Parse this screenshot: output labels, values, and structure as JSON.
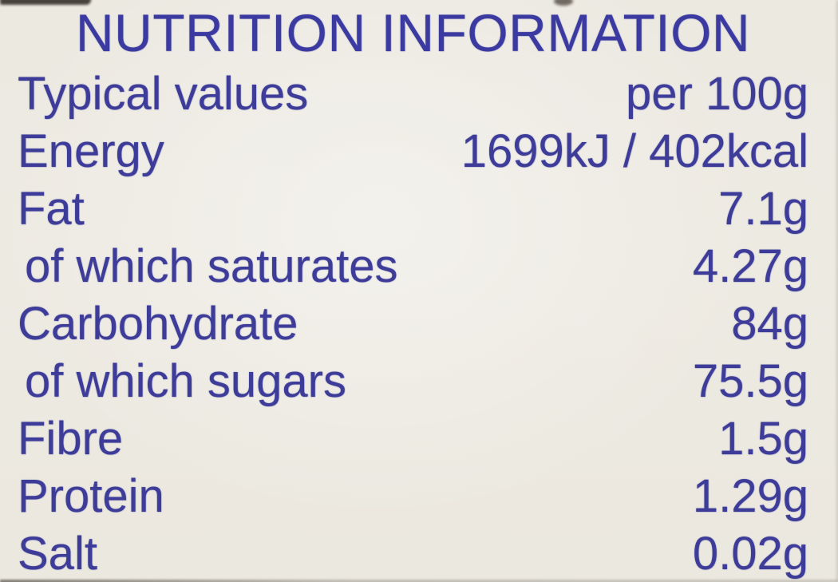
{
  "page": {
    "background_color": "#edeae2",
    "text_color": "#3e3c99",
    "title_color": "#3b3aa0"
  },
  "label": {
    "title": "NUTRITION INFORMATION",
    "header": {
      "label": "Typical values",
      "value": "per 100g"
    },
    "rows": [
      {
        "name": "Energy",
        "value": "1699kJ / 402kcal"
      },
      {
        "name": "Fat",
        "value": "7.1g"
      },
      {
        "name": "of which saturates",
        "value": "4.27g"
      },
      {
        "name": "Carbohydrate",
        "value": "84g"
      },
      {
        "name": "of which sugars",
        "value": "75.5g"
      },
      {
        "name": "Fibre",
        "value": "1.5g"
      },
      {
        "name": "Protein",
        "value": "1.29g"
      },
      {
        "name": "Salt",
        "value": "0.02g"
      }
    ]
  }
}
